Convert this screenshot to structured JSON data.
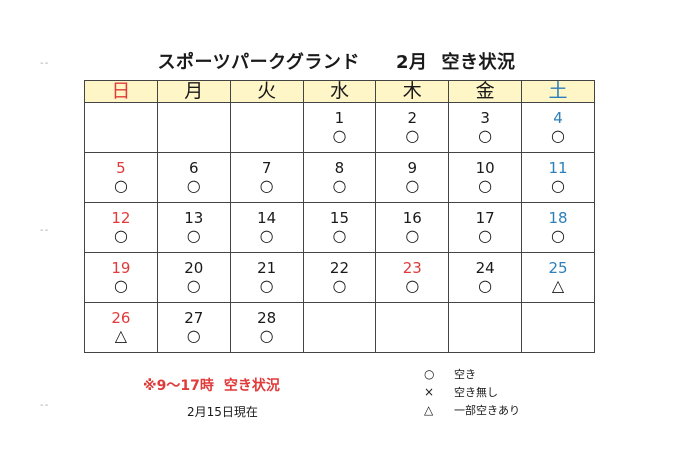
{
  "title": {
    "name": "スポーツパークグランド",
    "month": "2月",
    "status": "空き状況"
  },
  "colors": {
    "sunday": "#e03a3a",
    "saturday": "#2c7fb8",
    "header_bg": "#fff6c8"
  },
  "weekdays": [
    "日",
    "月",
    "火",
    "水",
    "木",
    "金",
    "土"
  ],
  "weeks": [
    [
      {
        "day": "",
        "mark": ""
      },
      {
        "day": "",
        "mark": ""
      },
      {
        "day": "",
        "mark": ""
      },
      {
        "day": "1",
        "mark": "○"
      },
      {
        "day": "2",
        "mark": "○"
      },
      {
        "day": "3",
        "mark": "○"
      },
      {
        "day": "4",
        "mark": "○"
      }
    ],
    [
      {
        "day": "5",
        "mark": "○"
      },
      {
        "day": "6",
        "mark": "○"
      },
      {
        "day": "7",
        "mark": "○"
      },
      {
        "day": "8",
        "mark": "○"
      },
      {
        "day": "9",
        "mark": "○"
      },
      {
        "day": "10",
        "mark": "○"
      },
      {
        "day": "11",
        "mark": "○"
      }
    ],
    [
      {
        "day": "12",
        "mark": "○"
      },
      {
        "day": "13",
        "mark": "○"
      },
      {
        "day": "14",
        "mark": "○"
      },
      {
        "day": "15",
        "mark": "○"
      },
      {
        "day": "16",
        "mark": "○"
      },
      {
        "day": "17",
        "mark": "○"
      },
      {
        "day": "18",
        "mark": "○"
      }
    ],
    [
      {
        "day": "19",
        "mark": "○"
      },
      {
        "day": "20",
        "mark": "○"
      },
      {
        "day": "21",
        "mark": "○"
      },
      {
        "day": "22",
        "mark": "○"
      },
      {
        "day": "23",
        "mark": "○",
        "holiday": true
      },
      {
        "day": "24",
        "mark": "○"
      },
      {
        "day": "25",
        "mark": "△"
      }
    ],
    [
      {
        "day": "26",
        "mark": "△"
      },
      {
        "day": "27",
        "mark": "○"
      },
      {
        "day": "28",
        "mark": "○"
      },
      {
        "day": "",
        "mark": ""
      },
      {
        "day": "",
        "mark": ""
      },
      {
        "day": "",
        "mark": ""
      },
      {
        "day": "",
        "mark": ""
      }
    ]
  ],
  "note": {
    "hours": "※9～17時",
    "label": "空き状況"
  },
  "as_of": "2月15日現在",
  "legend": [
    {
      "symbol": "○",
      "label": "空き"
    },
    {
      "symbol": "×",
      "label": "空き無し"
    },
    {
      "symbol": "△",
      "label": "一部空きあり"
    }
  ]
}
